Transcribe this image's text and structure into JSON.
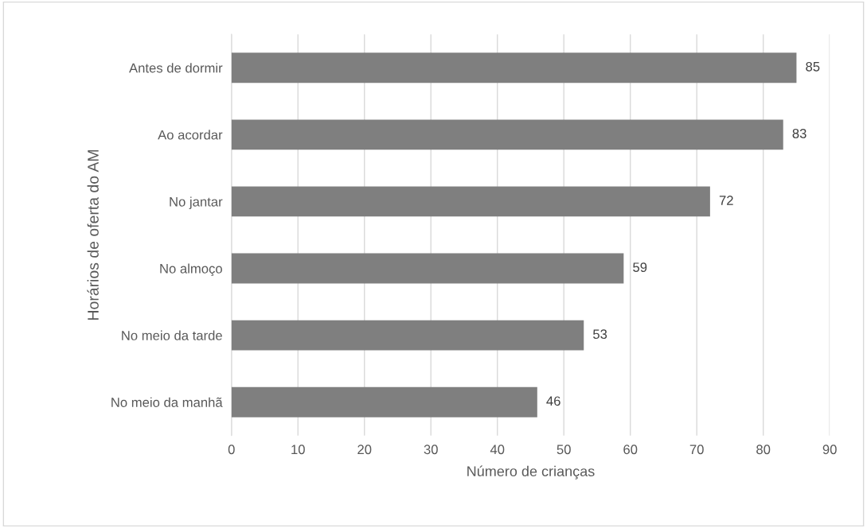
{
  "chart_data": {
    "type": "bar",
    "orientation": "horizontal",
    "categories": [
      "Antes de dormir",
      "Ao acordar",
      "No jantar",
      "No almoço",
      "No meio da tarde",
      "No meio da manhã"
    ],
    "values": [
      85,
      83,
      72,
      59,
      53,
      46
    ],
    "color": "#7f7f7f",
    "xlabel": "Número de crianças",
    "ylabel": "Horários de oferta do AM",
    "xlim": [
      0,
      90
    ],
    "xticks": [
      0,
      10,
      20,
      30,
      40,
      50,
      60,
      70,
      80,
      90
    ],
    "grid": "x",
    "data_labels": true
  }
}
